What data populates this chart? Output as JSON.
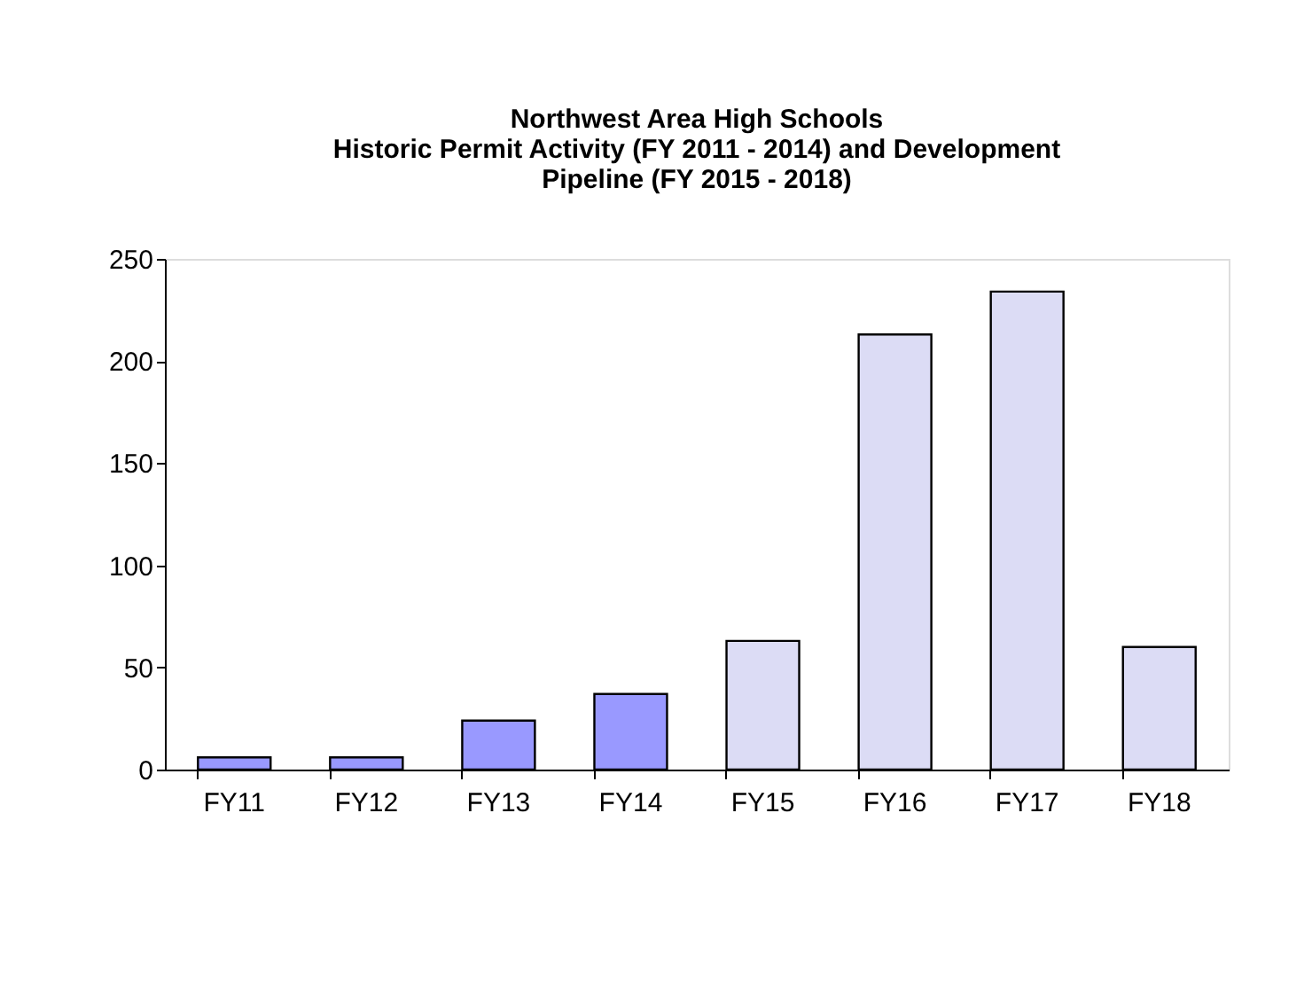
{
  "chart_data": {
    "type": "bar",
    "title": "Northwest Area High Schools\nHistoric Permit Activity (FY 2011 - 2014) and Development\nPipeline (FY 2015 - 2018)",
    "categories": [
      "FY11",
      "FY12",
      "FY13",
      "FY14",
      "FY15",
      "FY16",
      "FY17",
      "FY18"
    ],
    "values": [
      6,
      6,
      24,
      37,
      63,
      213,
      234,
      60
    ],
    "colors": [
      "#9999ff",
      "#9999ff",
      "#9999ff",
      "#9999ff",
      "#dcdcf5",
      "#dcdcf5",
      "#dcdcf5",
      "#dcdcf5"
    ],
    "ylim": [
      0,
      250
    ],
    "yticks": [
      0,
      50,
      100,
      150,
      200,
      250
    ],
    "grid": false,
    "legend": false
  }
}
